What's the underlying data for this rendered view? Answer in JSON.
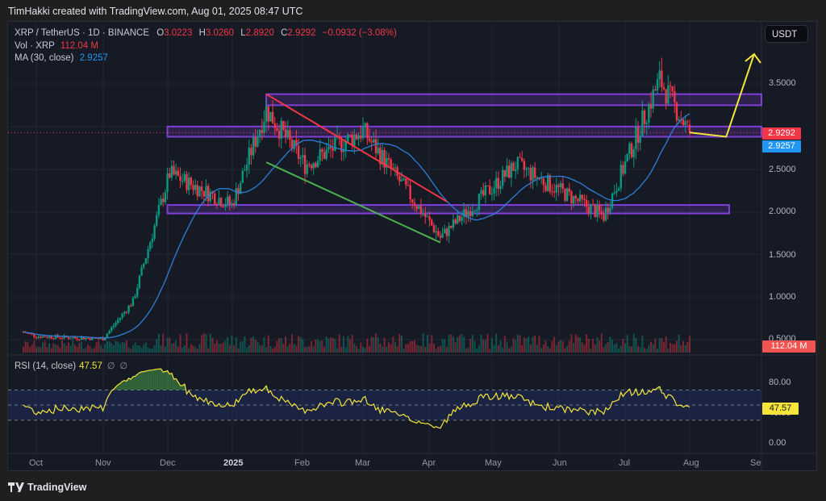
{
  "credit": "TimHakki created with TradingView.com, Aug 01, 2025 08:47 UTC",
  "legend": {
    "symbol": "XRP / TetherUS · 1D · BINANCE",
    "o_label": "O",
    "o": "3.0223",
    "h_label": "H",
    "h": "3.0260",
    "l_label": "L",
    "l": "2.8920",
    "c_label": "C",
    "c": "2.9292",
    "change": "−0.0932 (−3.08%)",
    "vol_label": "Vol · XRP",
    "vol": "112.04 M",
    "ma_label": "MA (30, close)",
    "ma": "2.9257"
  },
  "rsi_legend": {
    "label": "RSI (14, close)",
    "value": "47.57",
    "null1": "∅",
    "null2": "∅"
  },
  "currency_button": "USDT",
  "price_axis": [
    "3.5000",
    "2.5000",
    "2.0000",
    "1.5000",
    "1.0000",
    "0.5000"
  ],
  "price_tags": {
    "last": "2.9292",
    "ma": "2.9257",
    "volume": "112.04 M",
    "rsi": "47.57"
  },
  "rsi_axis": [
    "80.00",
    "40.00",
    "0.00"
  ],
  "time_axis": [
    {
      "label": "Oct",
      "bold": false
    },
    {
      "label": "Nov",
      "bold": false
    },
    {
      "label": "Dec",
      "bold": false
    },
    {
      "label": "2025",
      "bold": true
    },
    {
      "label": "Feb",
      "bold": false
    },
    {
      "label": "Mar",
      "bold": false
    },
    {
      "label": "Apr",
      "bold": false
    },
    {
      "label": "May",
      "bold": false
    },
    {
      "label": "Jun",
      "bold": false
    },
    {
      "label": "Jul",
      "bold": false
    },
    {
      "label": "Aug",
      "bold": false
    },
    {
      "label": "Se",
      "bold": false
    }
  ],
  "brand": "TradingView",
  "colors": {
    "up": "#089981",
    "down": "#f23645",
    "ma": "#2962ff",
    "rsi": "#f5e53a",
    "zone": "#7e3fd6",
    "bg": "#161a25"
  },
  "chart_data": {
    "type": "candlestick",
    "title": "XRP / TetherUS · 1D · BINANCE",
    "xlabel": "",
    "ylabel": "USDT",
    "ylim": [
      0.45,
      3.9
    ],
    "x": [
      "Oct",
      "Nov",
      "Dec",
      "2025",
      "Feb",
      "Mar",
      "Apr",
      "May",
      "Jun",
      "Jul",
      "Aug",
      "Se"
    ],
    "closes_approx": [
      {
        "date": "2024-09-25",
        "close": 0.59
      },
      {
        "date": "2024-10-01",
        "close": 0.54
      },
      {
        "date": "2024-11-01",
        "close": 0.51
      },
      {
        "date": "2024-11-15",
        "close": 0.95
      },
      {
        "date": "2024-12-02",
        "close": 2.45
      },
      {
        "date": "2024-12-31",
        "close": 2.08
      },
      {
        "date": "2025-01-16",
        "close": 3.2
      },
      {
        "date": "2025-02-03",
        "close": 2.55
      },
      {
        "date": "2025-03-02",
        "close": 2.95
      },
      {
        "date": "2025-04-07",
        "close": 1.7
      },
      {
        "date": "2025-05-12",
        "close": 2.55
      },
      {
        "date": "2025-06-22",
        "close": 1.95
      },
      {
        "date": "2025-07-18",
        "close": 3.55
      },
      {
        "date": "2025-08-01",
        "close": 2.9292
      }
    ],
    "last": {
      "open": 3.0223,
      "high": 3.026,
      "low": 2.892,
      "close": 2.9292,
      "change": -0.0932,
      "change_pct": -3.08
    },
    "ma30": 2.9257,
    "volume_last": "112.04M",
    "zones": [
      {
        "name": "resistance-upper",
        "from": 3.25,
        "to": 3.38
      },
      {
        "name": "resistance-mid",
        "from": 2.88,
        "to": 3.0
      },
      {
        "name": "support",
        "from": 1.98,
        "to": 2.08
      }
    ],
    "trendlines": [
      {
        "name": "descending-resistance",
        "color": "#f23645",
        "from": [
          "2025-01-16",
          3.38
        ],
        "to": [
          "2025-04-10",
          2.12
        ]
      },
      {
        "name": "descending-support",
        "color": "#4caf50",
        "from": [
          "2025-01-16",
          2.58
        ],
        "to": [
          "2025-04-07",
          1.64
        ]
      },
      {
        "name": "projection-arrow",
        "color": "#f5e53a",
        "points": [
          [
            "2025-08-01",
            2.93
          ],
          [
            "2025-08-18",
            2.88
          ],
          [
            "2025-08-31",
            3.85
          ]
        ]
      }
    ],
    "rsi": {
      "period": 14,
      "value": 47.57,
      "levels": [
        70,
        50,
        30
      ],
      "ylim": [
        0,
        100
      ],
      "overbought_peaks": [
        "2024-12-01",
        "2025-07-18"
      ]
    }
  }
}
